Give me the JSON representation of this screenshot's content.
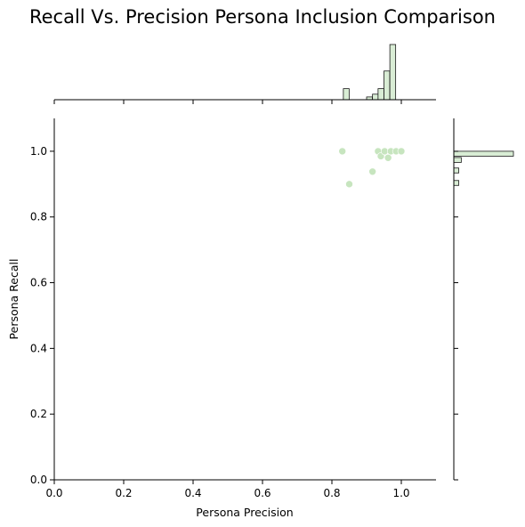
{
  "chart_data": {
    "type": "scatter",
    "title": "Recall Vs. Precision Persona Inclusion Comparison",
    "xlabel": "Persona Precision",
    "ylabel": "Persona Recall",
    "xlim": [
      0.0,
      1.1
    ],
    "ylim": [
      0.0,
      1.1
    ],
    "xticks": [
      "0.0",
      "0.2",
      "0.4",
      "0.6",
      "0.8",
      "1.0"
    ],
    "yticks": [
      "0.0",
      "0.2",
      "0.4",
      "0.6",
      "0.8",
      "1.0"
    ],
    "grid": false,
    "points": [
      {
        "x": 0.83,
        "y": 1.0
      },
      {
        "x": 0.85,
        "y": 0.9
      },
      {
        "x": 0.917,
        "y": 0.938
      },
      {
        "x": 0.933,
        "y": 1.0
      },
      {
        "x": 0.941,
        "y": 0.985
      },
      {
        "x": 0.952,
        "y": 1.0
      },
      {
        "x": 0.962,
        "y": 0.98
      },
      {
        "x": 0.97,
        "y": 1.0
      },
      {
        "x": 0.985,
        "y": 1.0
      },
      {
        "x": 1.0,
        "y": 1.0
      }
    ],
    "marginal_x_hist": {
      "bin_width": 0.0167,
      "bins": [
        {
          "start": 0.833,
          "count": 1
        },
        {
          "start": 0.9,
          "count": 0.25
        },
        {
          "start": 0.917,
          "count": 0.5
        },
        {
          "start": 0.933,
          "count": 1
        },
        {
          "start": 0.95,
          "count": 2.6
        },
        {
          "start": 0.967,
          "count": 5
        }
      ]
    },
    "marginal_y_hist": {
      "bin_width": 0.015,
      "bins": [
        {
          "start": 0.896,
          "count": 1
        },
        {
          "start": 0.934,
          "count": 1
        },
        {
          "start": 0.966,
          "count": 1.5
        },
        {
          "start": 0.985,
          "count": 12
        }
      ]
    },
    "colors": {
      "point_fill": "#c7e5bf",
      "bar_fill": "#d9edd5",
      "bar_edge": "#1a1a1a",
      "axis": "#000000"
    }
  }
}
